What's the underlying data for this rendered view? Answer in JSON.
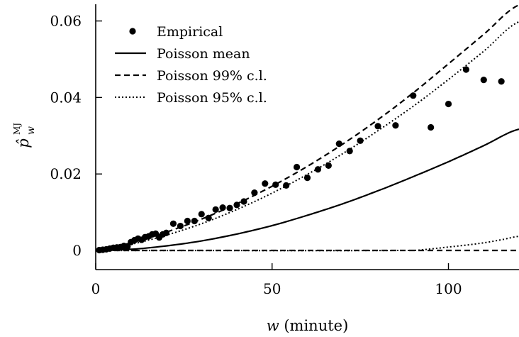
{
  "chart_data": {
    "type": "scatter",
    "xlabel_var": "w",
    "xlabel_unit": "(minute)",
    "ylabel_main": "p̂",
    "ylabel_sub": "w",
    "ylabel_sup": "MJ",
    "xlim": [
      0,
      120
    ],
    "ylim": [
      -0.005,
      0.064
    ],
    "x_ticks": [
      0,
      50,
      100
    ],
    "x_tick_labels": [
      "0",
      "50",
      "100"
    ],
    "y_ticks": [
      0,
      0.02,
      0.04,
      0.06
    ],
    "y_tick_labels": [
      "0",
      "0.02",
      "0.04",
      "0.06"
    ],
    "grid": false,
    "legend_position": "top-left",
    "legend": [
      {
        "label": "Empirical",
        "style": "marker"
      },
      {
        "label": "Poisson mean",
        "style": "solid"
      },
      {
        "label": "Poisson 99% c.l.",
        "style": "dashed"
      },
      {
        "label": "Poisson 95% c.l.",
        "style": "dotted"
      }
    ],
    "empirical": {
      "x": [
        1,
        2,
        3,
        4,
        5,
        6,
        7,
        8,
        9,
        10,
        11,
        12,
        13,
        14,
        15,
        16,
        17,
        18,
        19,
        20,
        22,
        24,
        26,
        28,
        30,
        32,
        34,
        36,
        38,
        40,
        42,
        45,
        48,
        51,
        54,
        57,
        60,
        63,
        66,
        69,
        72,
        75,
        80,
        85,
        90,
        95,
        100,
        105,
        110,
        115
      ],
      "y": [
        0.0001,
        0.0002,
        0.0003,
        0.0005,
        0.0007,
        0.0008,
        0.0009,
        0.0012,
        0.001,
        0.0022,
        0.0027,
        0.0031,
        0.0028,
        0.0035,
        0.0037,
        0.0042,
        0.0044,
        0.0034,
        0.0042,
        0.0046,
        0.007,
        0.0064,
        0.0077,
        0.0077,
        0.0095,
        0.0085,
        0.0107,
        0.0112,
        0.0111,
        0.0119,
        0.0128,
        0.0151,
        0.0175,
        0.0172,
        0.017,
        0.0218,
        0.019,
        0.0212,
        0.0222,
        0.0279,
        0.026,
        0.0287,
        0.0325,
        0.0327,
        0.0405,
        0.0322,
        0.0383,
        0.0473,
        0.0446,
        0.0442
      ]
    },
    "poisson_mean": {
      "x": [
        0,
        10,
        20,
        30,
        40,
        50,
        60,
        70,
        80,
        90,
        100,
        110,
        120
      ],
      "y": [
        0,
        0.0003,
        0.0012,
        0.0025,
        0.0043,
        0.0065,
        0.0092,
        0.0122,
        0.0156,
        0.0193,
        0.0232,
        0.0274,
        0.0317
      ]
    },
    "poisson_99_upper": {
      "x": [
        0,
        10,
        20,
        30,
        40,
        50,
        60,
        70,
        80,
        90,
        100,
        110,
        120
      ],
      "y": [
        0,
        0.002,
        0.0048,
        0.0082,
        0.0122,
        0.0168,
        0.022,
        0.0278,
        0.0342,
        0.0412,
        0.0488,
        0.0565,
        0.0642
      ]
    },
    "poisson_95_upper": {
      "x": [
        0,
        10,
        20,
        30,
        40,
        50,
        60,
        70,
        80,
        90,
        100,
        110,
        120
      ],
      "y": [
        0,
        0.0016,
        0.004,
        0.007,
        0.0107,
        0.015,
        0.0199,
        0.0253,
        0.0313,
        0.0377,
        0.0447,
        0.0521,
        0.0598
      ]
    },
    "poisson_99_lower": {
      "x": [
        0,
        120
      ],
      "y": [
        0,
        0
      ]
    },
    "poisson_95_lower": {
      "x": [
        0,
        90,
        95,
        100,
        105,
        110,
        115,
        120
      ],
      "y": [
        0,
        0,
        0.0004,
        0.0009,
        0.0014,
        0.002,
        0.0028,
        0.0037
      ]
    }
  }
}
